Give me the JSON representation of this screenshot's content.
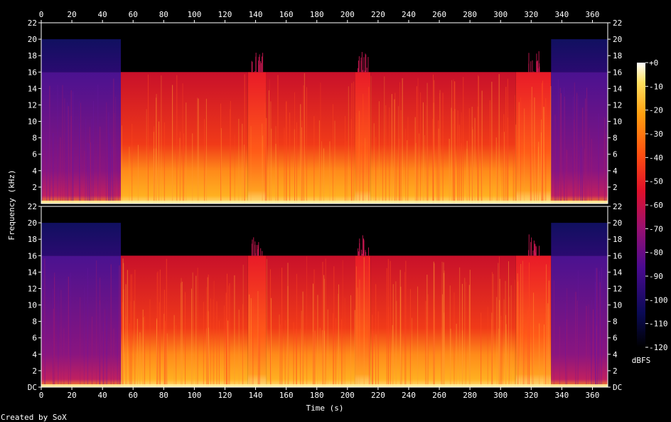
{
  "chart_data": {
    "type": "heatmap",
    "xlabel": "Time (s)",
    "ylabel": "Frequency (kHz)",
    "xlim": [
      0,
      370
    ],
    "ylim": [
      0,
      22
    ],
    "x_ticks": [
      "0",
      "20",
      "40",
      "60",
      "80",
      "100",
      "120",
      "140",
      "160",
      "180",
      "200",
      "220",
      "240",
      "260",
      "280",
      "300",
      "320",
      "340",
      "360"
    ],
    "y_ticks_top": [
      "2",
      "4",
      "6",
      "8",
      "10",
      "12",
      "14",
      "16",
      "18",
      "20",
      "22"
    ],
    "y_ticks_bottom": [
      "DC",
      "2",
      "4",
      "6",
      "8",
      "10",
      "12",
      "14",
      "16",
      "18",
      "20",
      "22"
    ],
    "channels": 2,
    "colorbar": {
      "label": "dBFS",
      "range": [
        -120,
        0
      ],
      "ticks": [
        "+0",
        "-10",
        "-20",
        "-30",
        "-40",
        "-50",
        "-60",
        "-70",
        "-80",
        "-90",
        "-100",
        "-110",
        "-120"
      ]
    },
    "segments_approx": [
      {
        "t": [
          0,
          52
        ],
        "level": "quiet",
        "cutoff_khz": 16,
        "extend_khz": 20
      },
      {
        "t": [
          52,
          135
        ],
        "level": "loud",
        "cutoff_khz": 16
      },
      {
        "t": [
          135,
          147
        ],
        "level": "loud-peak",
        "cutoff_khz": 16
      },
      {
        "t": [
          147,
          205
        ],
        "level": "loud",
        "cutoff_khz": 16
      },
      {
        "t": [
          205,
          215
        ],
        "level": "loud-peak",
        "cutoff_khz": 16
      },
      {
        "t": [
          215,
          310
        ],
        "level": "loud",
        "cutoff_khz": 16
      },
      {
        "t": [
          310,
          333
        ],
        "level": "loud-peak",
        "cutoff_khz": 16
      },
      {
        "t": [
          333,
          370
        ],
        "level": "quiet",
        "cutoff_khz": 16,
        "extend_khz": 20
      }
    ]
  },
  "footer": {
    "credit": "Created by SoX"
  }
}
